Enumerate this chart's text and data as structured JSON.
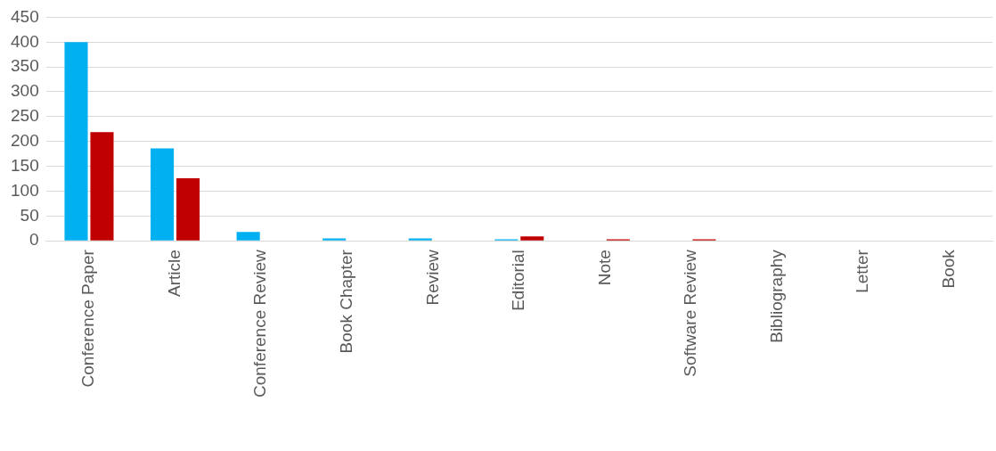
{
  "chart_data": {
    "type": "bar",
    "categories": [
      "Conference Paper",
      "Article",
      "Conference Review",
      "Book Chapter",
      "Review",
      "Editorial",
      "Note",
      "Software Review",
      "Bibliography",
      "Letter",
      "Book"
    ],
    "series": [
      {
        "color": "#00b0f0",
        "values": [
          400,
          186,
          18,
          5,
          5,
          3,
          0,
          0,
          0,
          0,
          0
        ]
      },
      {
        "color": "#c00000",
        "values": [
          219,
          126,
          0,
          0,
          0,
          9,
          3,
          3,
          0,
          0,
          0
        ]
      }
    ],
    "ylim": [
      0,
      450
    ],
    "yticks": [
      0,
      50,
      100,
      150,
      200,
      250,
      300,
      350,
      400,
      450
    ],
    "grid": "y"
  }
}
